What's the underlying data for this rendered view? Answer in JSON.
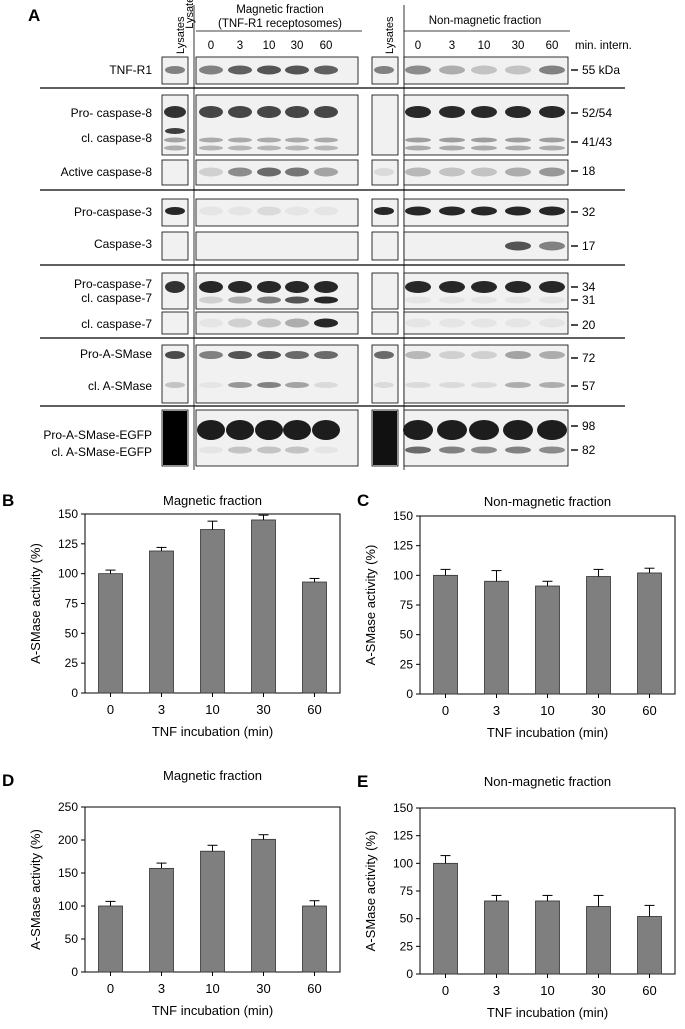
{
  "panel_a": {
    "label": "A",
    "lysates_label": "Lysates",
    "magnetic_header_1": "Magnetic fraction",
    "magnetic_header_2": "(TNF-R1 receptosomes)",
    "nonmagnetic_header": "Non-magnetic fraction",
    "time_points": [
      "0",
      "3",
      "10",
      "30",
      "60"
    ],
    "time_unit_label": "min. intern.",
    "row_labels": {
      "tnfr1": "TNF-R1",
      "procasp8": "Pro- caspase-8",
      "clcasp8": "cl. caspase-8",
      "activecasp8": "Active caspase-8",
      "procasp3": "Pro-caspase-3",
      "casp3": "Caspase-3",
      "procasp7": "Pro-caspase-7",
      "clcasp7a": "cl. caspase-7",
      "clcasp7b": "cl. caspase-7",
      "proasmase": "Pro-A-SMase",
      "clasmase": "cl. A-SMase",
      "proasmase_egfp": "Pro-A-SMase-EGFP",
      "clasmase_egfp": "cl. A-SMase-EGFP"
    },
    "mw_labels": {
      "tnfr1": "55 kDa",
      "procasp8": "52/54",
      "clcasp8": "41/43",
      "activecasp8": "18",
      "procasp3": "32",
      "casp3": "17",
      "procasp7": "34",
      "clcasp7a": "31",
      "clcasp7b": "20",
      "proasmase": "72",
      "clasmase": "57",
      "proasmase_egfp": "98",
      "clasmase_egfp": "82"
    }
  },
  "chart_data": [
    {
      "panel": "B",
      "type": "bar",
      "title": "Magnetic fraction",
      "xlabel": "TNF incubation (min)",
      "ylabel": "A-SMase activity (%)",
      "categories": [
        "0",
        "3",
        "10",
        "30",
        "60"
      ],
      "values": [
        100,
        119,
        137,
        145,
        93
      ],
      "errors": [
        3,
        3,
        7,
        4,
        3
      ],
      "ylim": [
        0,
        150
      ],
      "yticks": [
        0,
        25,
        50,
        75,
        100,
        125,
        150
      ],
      "bar_color": "#7f7f7f"
    },
    {
      "panel": "C",
      "type": "bar",
      "title": "Non-magnetic fraction",
      "xlabel": "TNF incubation (min)",
      "ylabel": "A-SMase activity (%)",
      "categories": [
        "0",
        "3",
        "10",
        "30",
        "60"
      ],
      "values": [
        100,
        95,
        91,
        99,
        102
      ],
      "errors": [
        5,
        9,
        4,
        6,
        4
      ],
      "ylim": [
        0,
        150
      ],
      "yticks": [
        0,
        25,
        50,
        75,
        100,
        125,
        150
      ],
      "bar_color": "#7f7f7f"
    },
    {
      "panel": "D",
      "type": "bar",
      "title": "Magnetic fraction",
      "xlabel": "TNF incubation (min)",
      "ylabel": "A-SMase activity (%)",
      "categories": [
        "0",
        "3",
        "10",
        "30",
        "60"
      ],
      "values": [
        100,
        157,
        183,
        201,
        100
      ],
      "errors": [
        7,
        8,
        9,
        7,
        8
      ],
      "ylim": [
        0,
        250
      ],
      "yticks": [
        0,
        50,
        100,
        150,
        200,
        250
      ],
      "bar_color": "#7f7f7f"
    },
    {
      "panel": "E",
      "type": "bar",
      "title": "Non-magnetic fraction",
      "xlabel": "TNF incubation (min)",
      "ylabel": "A-SMase activity (%)",
      "categories": [
        "0",
        "3",
        "10",
        "30",
        "60"
      ],
      "values": [
        100,
        66,
        66,
        61,
        52
      ],
      "errors": [
        7,
        5,
        5,
        10,
        10
      ],
      "ylim": [
        0,
        150
      ],
      "yticks": [
        0,
        25,
        50,
        75,
        100,
        125,
        150
      ],
      "bar_color": "#7f7f7f"
    }
  ]
}
